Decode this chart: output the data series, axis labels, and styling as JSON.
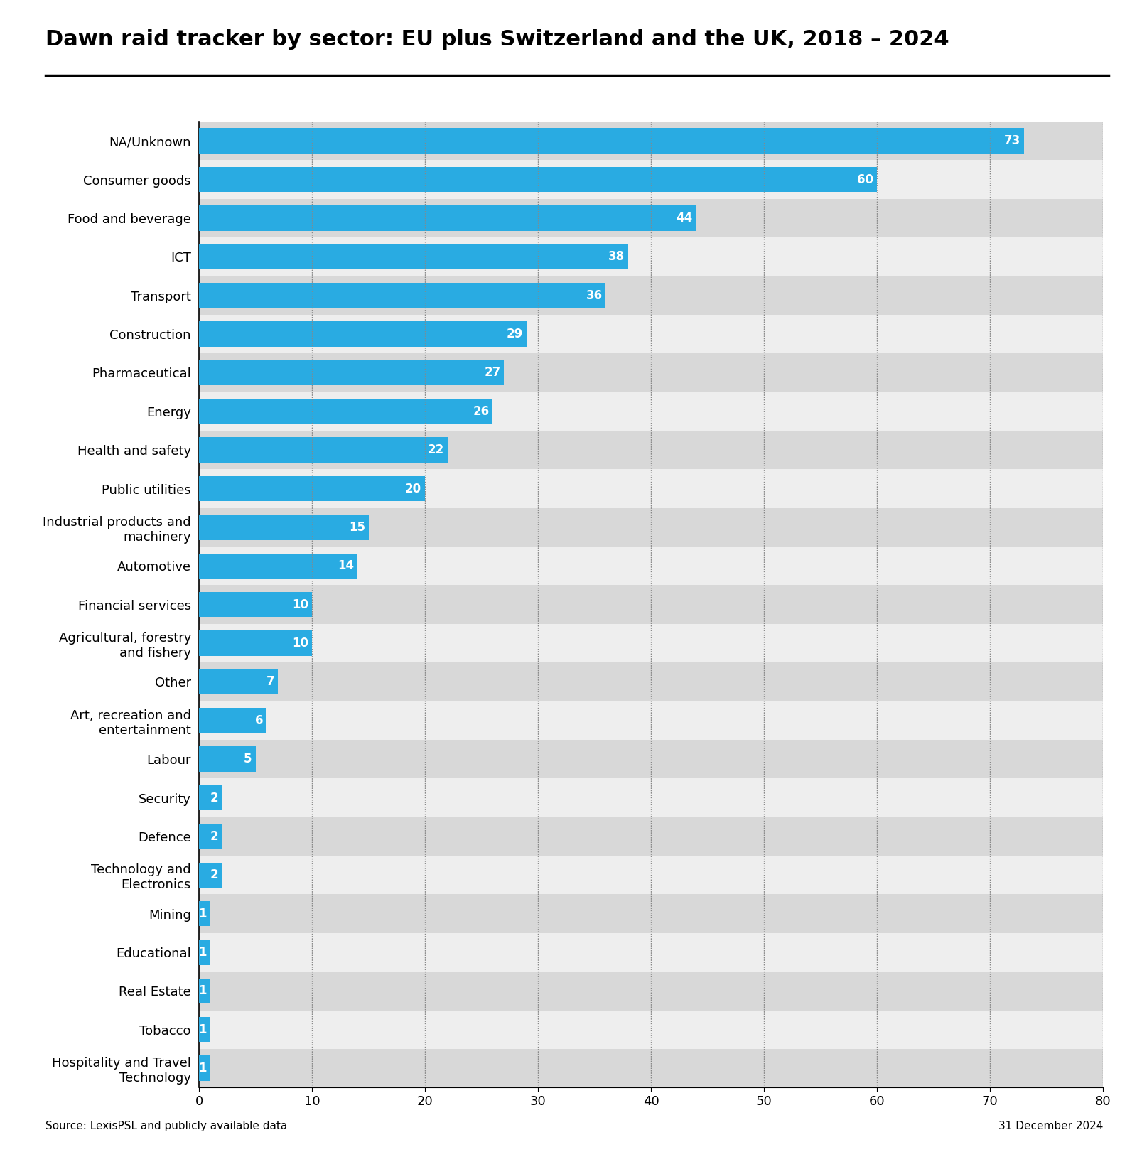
{
  "title": "Dawn raid tracker by sector: EU plus Switzerland and the UK, 2018 – 2024",
  "categories": [
    "NA/Unknown",
    "Consumer goods",
    "Food and beverage",
    "ICT",
    "Transport",
    "Construction",
    "Pharmaceutical",
    "Energy",
    "Health and safety",
    "Public utilities",
    "Industrial products and\nmachinery",
    "Automotive",
    "Financial services",
    "Agricultural, forestry\nand fishery",
    "Other",
    "Art, recreation and\nentertainment",
    "Labour",
    "Security",
    "Defence",
    "Technology and\nElectronics",
    "Mining",
    "Educational",
    "Real Estate",
    "Tobacco",
    "Hospitality and Travel\nTechnology"
  ],
  "values": [
    73,
    60,
    44,
    38,
    36,
    29,
    27,
    26,
    22,
    20,
    15,
    14,
    10,
    10,
    7,
    6,
    5,
    2,
    2,
    2,
    1,
    1,
    1,
    1,
    1
  ],
  "bar_color": "#29ABE2",
  "bg_color_odd": "#D8D8D8",
  "bg_color_even": "#EEEEEE",
  "xlim": [
    0,
    80
  ],
  "xticks": [
    0,
    10,
    20,
    30,
    40,
    50,
    60,
    70,
    80
  ],
  "source_text": "Source: LexisPSL and publicly available data",
  "date_text": "31 December 2024",
  "title_fontsize": 22,
  "label_fontsize": 13,
  "value_fontsize": 12,
  "tick_fontsize": 13
}
